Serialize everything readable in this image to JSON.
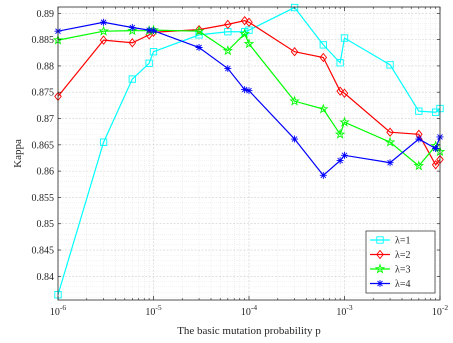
{
  "chart_data": {
    "type": "line",
    "xlabel": "The basic mutation probability p",
    "ylabel": "Kappa",
    "xscale": "log",
    "xlim": [
      1e-06,
      0.01
    ],
    "ylim": [
      0.8355,
      0.8912
    ],
    "y_ticks": [
      "0.84",
      "0.845",
      "0.85",
      "0.855",
      "0.86",
      "0.865",
      "0.87",
      "0.875",
      "0.88",
      "0.885",
      "0.89"
    ],
    "x_ticks": [
      {
        "base": "10",
        "exp": "-6",
        "value": 1e-06
      },
      {
        "base": "10",
        "exp": "-5",
        "value": 1e-05
      },
      {
        "base": "10",
        "exp": "-4",
        "value": 0.0001
      },
      {
        "base": "10",
        "exp": "-3",
        "value": 0.001
      },
      {
        "base": "10",
        "exp": "-2",
        "value": 0.01
      }
    ],
    "grid": true,
    "minor_grid": true,
    "legend_position": "bottom-right",
    "series": [
      {
        "name": "λ=1",
        "color": "#00ffff",
        "marker": "square",
        "x": [
          1e-06,
          3e-06,
          6e-06,
          9e-06,
          1e-05,
          3e-05,
          6e-05,
          9e-05,
          0.0001,
          0.0003,
          0.0006,
          0.0009,
          0.001,
          0.003,
          0.006,
          0.009,
          0.01
        ],
        "y": [
          0.8365,
          0.8655,
          0.8775,
          0.8805,
          0.8827,
          0.8859,
          0.8865,
          0.8865,
          0.8868,
          0.8911,
          0.884,
          0.8806,
          0.8853,
          0.8802,
          0.8714,
          0.8712,
          0.8719
        ]
      },
      {
        "name": "λ=2",
        "color": "#ff0000",
        "marker": "diamond",
        "x": [
          1e-06,
          3e-06,
          6e-06,
          9e-06,
          1e-05,
          3e-05,
          6e-05,
          9e-05,
          0.0001,
          0.0003,
          0.0006,
          0.0009,
          0.001,
          0.003,
          0.006,
          0.009,
          0.01
        ],
        "y": [
          0.8742,
          0.8849,
          0.8844,
          0.8859,
          0.8864,
          0.8869,
          0.8879,
          0.8886,
          0.8883,
          0.8827,
          0.8816,
          0.8752,
          0.8748,
          0.8674,
          0.867,
          0.8612,
          0.8622
        ]
      },
      {
        "name": "λ=3",
        "color": "#00ff00",
        "marker": "pentagram",
        "x": [
          1e-06,
          3e-06,
          6e-06,
          9e-06,
          1e-05,
          3e-05,
          6e-05,
          9e-05,
          0.0001,
          0.0003,
          0.0006,
          0.0009,
          0.001,
          0.003,
          0.006,
          0.009,
          0.01
        ],
        "y": [
          0.8849,
          0.8866,
          0.8867,
          0.8867,
          0.8868,
          0.8866,
          0.8829,
          0.8861,
          0.8842,
          0.8733,
          0.8718,
          0.867,
          0.8693,
          0.8655,
          0.861,
          0.8648,
          0.8637
        ]
      },
      {
        "name": "λ=4",
        "color": "#0000ff",
        "marker": "asterisk",
        "x": [
          1e-06,
          3e-06,
          6e-06,
          9e-06,
          1e-05,
          3e-05,
          6e-05,
          9e-05,
          0.0001,
          0.0003,
          0.0006,
          0.0009,
          0.001,
          0.003,
          0.006,
          0.009,
          0.01
        ],
        "y": [
          0.8866,
          0.8883,
          0.8873,
          0.8868,
          0.8867,
          0.8835,
          0.8795,
          0.8755,
          0.8753,
          0.8661,
          0.8592,
          0.862,
          0.863,
          0.8616,
          0.8661,
          0.8643,
          0.8665
        ]
      }
    ]
  }
}
